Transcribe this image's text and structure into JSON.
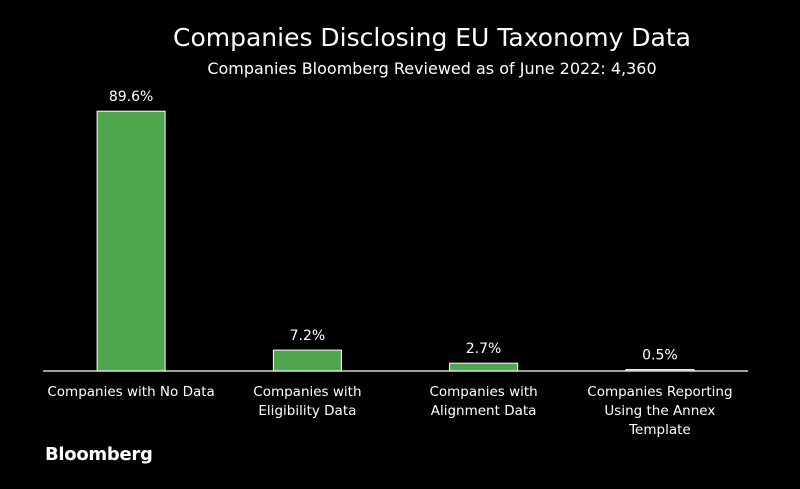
{
  "brand": "Bloomberg",
  "colors": {
    "background": "#000000",
    "bar": "#4fa74d",
    "text": "#ffffff"
  },
  "chart_data": {
    "type": "bar",
    "title": "Companies Disclosing EU Taxonomy Data",
    "subtitle": "Companies Bloomberg Reviewed as of June 2022: 4,360",
    "categories": [
      [
        "Companies with No Data"
      ],
      [
        "Companies with",
        "Eligibility Data"
      ],
      [
        "Companies with",
        "Alignment Data"
      ],
      [
        "Companies Reporting",
        "Using the Annex",
        "Template"
      ]
    ],
    "values": [
      89.6,
      7.2,
      2.7,
      0.5
    ],
    "data_labels": [
      "89.6%",
      "7.2%",
      "2.7%",
      "0.5%"
    ],
    "unit": "%",
    "ylim": [
      0,
      100
    ],
    "xlabel": "",
    "ylabel": "",
    "grid": false,
    "legend": "none"
  }
}
